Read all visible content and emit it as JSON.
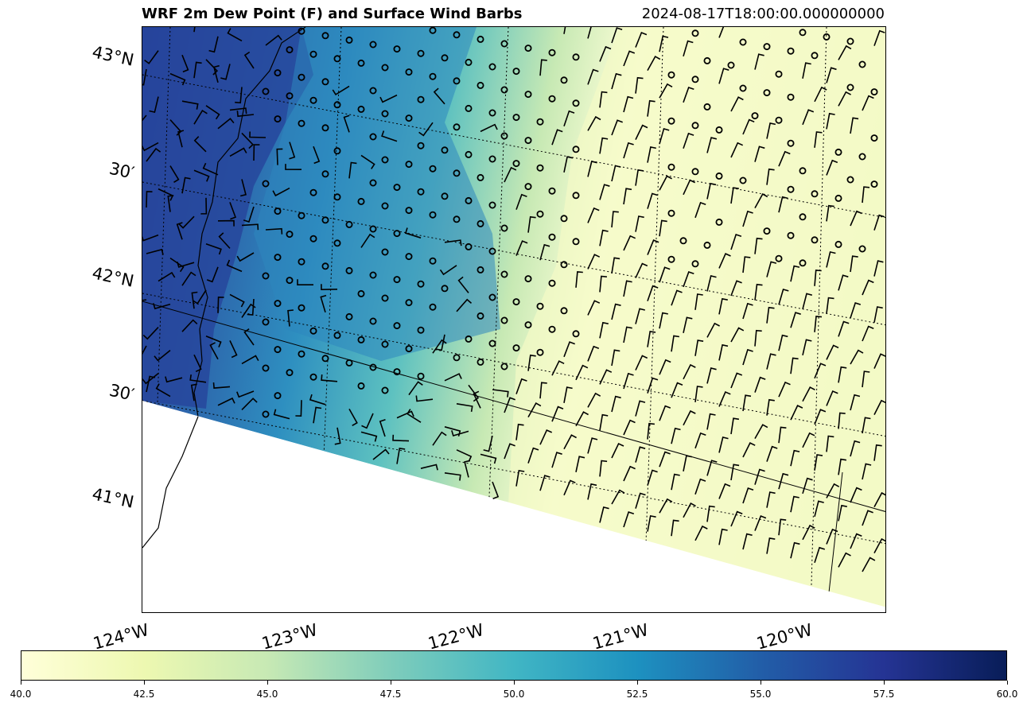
{
  "title": {
    "left": "WRF 2m Dew Point (F) and Surface Wind Barbs",
    "right": "2024-08-17T18:00:00.000000000"
  },
  "map": {
    "latitude_labels": [
      "43°N",
      "30′",
      "42°N",
      "30′",
      "41°N"
    ],
    "longitude_labels": [
      "124°W",
      "123°W",
      "122°W",
      "121°W",
      "120°W"
    ],
    "field": "2m dew point temperature (°F)",
    "wind_symbols": "wind barbs (open circles = calm)",
    "colors": {
      "coast_water": "#2a3f96",
      "high_dewpoint": "#253494",
      "mid_dewpoint": "#41b6c4",
      "low_dewpoint": "#ffffd9",
      "lines": "#000000"
    }
  },
  "colorbar": {
    "min": 40.0,
    "max": 60.0,
    "colormap": "YlGnBu",
    "tick_labels": [
      "40.0",
      "42.5",
      "45.0",
      "47.5",
      "50.0",
      "52.5",
      "55.0",
      "57.5",
      "60.0"
    ]
  }
}
